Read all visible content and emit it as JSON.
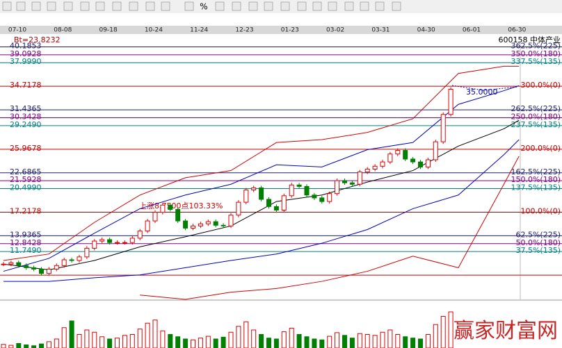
{
  "chart_data": {
    "type": "stock",
    "toolbar_text": "%",
    "title": "600158 中体产业",
    "subtitle": "Bt=23.8232",
    "annotations": [
      "上涨8.7500点103.33%",
      "35.0000"
    ],
    "watermark": "赢家财富网",
    "categories": [
      "07-10",
      "08-08",
      "09-18",
      "10-24",
      "11-24",
      "12-23",
      "01-23",
      "03-02",
      "03-31",
      "04-30",
      "06-01",
      "06-30"
    ],
    "ylim": [
      5.0,
      41.3
    ],
    "levels": [
      {
        "price": {
          "value": 40.1853,
          "label": "40.1853"
        },
        "pct": "362.5%(225)",
        "color": "#20206a"
      },
      {
        "price": {
          "value": 39.0928,
          "label": "39.0928"
        },
        "pct": "350.0%(180)",
        "color": "#800080"
      },
      {
        "price": {
          "value": 37.999,
          "label": "37.9990"
        },
        "pct": "337.5%(135)",
        "color": "#008080"
      },
      {
        "price": {
          "value": 34.7178,
          "label": "34.7178"
        },
        "pct": "300.0%(0)",
        "color": "#c00000"
      },
      {
        "price": {
          "value": 31.4365,
          "label": "31.4365"
        },
        "pct": "262.5%(225)",
        "color": "#20206a"
      },
      {
        "price": {
          "value": 30.3428,
          "label": "30.3428"
        },
        "pct": "250.0%(180)",
        "color": "#800080"
      },
      {
        "price": {
          "value": 29.249,
          "label": "29.2490"
        },
        "pct": "237.5%(135)",
        "color": "#008080"
      },
      {
        "price": {
          "value": 25.9678,
          "label": "25.9678"
        },
        "pct": "200.0%(0)",
        "color": "#c00000"
      },
      {
        "price": {
          "value": 22.6865,
          "label": "22.6865"
        },
        "pct": "162.5%(225)",
        "color": "#20206a"
      },
      {
        "price": {
          "value": 21.5928,
          "label": "21.5928"
        },
        "pct": "150.0%(180)",
        "color": "#800080"
      },
      {
        "price": {
          "value": 20.499,
          "label": "20.4990"
        },
        "pct": "137.5%(135)",
        "color": "#008080"
      },
      {
        "price": {
          "value": 17.2178,
          "label": "17.2178"
        },
        "pct": "100.0%(0)",
        "color": "#c00000"
      },
      {
        "price": {
          "value": 13.9365,
          "label": "13.9365"
        },
        "pct": "62.5%(225)",
        "color": "#20206a"
      },
      {
        "price": {
          "value": 12.8428,
          "label": "12.8428"
        },
        "pct": "50.0%(180)",
        "color": "#800080"
      },
      {
        "price": {
          "value": 11.749,
          "label": "11.7490"
        },
        "pct": "37.5%(135)",
        "color": "#008080"
      },
      {
        "price": 8.4678,
        "color": "#c00000"
      }
    ],
    "candles": {
      "up_color": "#e00000",
      "down_color": "#008000",
      "values": [
        10.0,
        10.2,
        9.8,
        9.5,
        9.3,
        8.7,
        9.3,
        9.8,
        10.6,
        10.5,
        11.0,
        12.2,
        13.2,
        13.4,
        13.0,
        13.0,
        13.0,
        13.6,
        14.6,
        16.0,
        17.2,
        18.2,
        17.6,
        16.0,
        15.0,
        15.3,
        15.6,
        15.9,
        15.4,
        15.3,
        16.8,
        18.6,
        20.3,
        20.6,
        19.0,
        18.0,
        17.5,
        19.5,
        21.0,
        20.8,
        19.6,
        19.2,
        18.7,
        19.8,
        21.6,
        21.3,
        21.1,
        22.8,
        23.2,
        23.6,
        24.2,
        25.3,
        25.8,
        24.6,
        24.2,
        23.5,
        24.5,
        27.0,
        30.8,
        34.3
      ]
    },
    "volume": {
      "ylim": [
        0,
        100
      ],
      "values": [
        8,
        6,
        10,
        7,
        5,
        9,
        14,
        20,
        45,
        60,
        30,
        40,
        35,
        25,
        20,
        22,
        28,
        30,
        42,
        55,
        62,
        38,
        30,
        25,
        20,
        18,
        22,
        26,
        20,
        24,
        35,
        48,
        58,
        40,
        30,
        22,
        20,
        36,
        44,
        30,
        25,
        20,
        18,
        26,
        34,
        28,
        22,
        32,
        30,
        28,
        35,
        40,
        30,
        25,
        22,
        20,
        30,
        52,
        70,
        80
      ]
    },
    "lines": [
      {
        "color": "#0000c0",
        "x": [
          0,
          6,
          12,
          18,
          24,
          30,
          36,
          42,
          48,
          54,
          60,
          66,
          68
        ],
        "values": [
          9.0,
          10.8,
          14.3,
          17.7,
          19.6,
          21.1,
          23.8,
          23.5,
          25.9,
          26.9,
          32.2,
          34.1,
          34.8
        ]
      },
      {
        "color": "#000000",
        "x": [
          0,
          6,
          12,
          18,
          24,
          30,
          36,
          42,
          48,
          54,
          60,
          66,
          68
        ],
        "values": [
          10.0,
          9.2,
          10.5,
          12.4,
          13.8,
          15.3,
          18.7,
          19.6,
          21.4,
          23.0,
          26.4,
          28.8,
          30.0
        ]
      },
      {
        "color": "#0000c0",
        "x": [
          0,
          6,
          12,
          18,
          24,
          30,
          36,
          42,
          48,
          54,
          60,
          66,
          68
        ],
        "values": [
          7.6,
          7.6,
          8.1,
          8.5,
          9.5,
          10.5,
          11.4,
          12.9,
          14.8,
          17.7,
          19.6,
          25.2,
          27.3
        ]
      },
      {
        "color": "#d00000",
        "x": [
          0,
          6,
          12,
          18,
          24,
          30,
          36,
          42,
          48,
          54,
          60,
          66,
          68
        ],
        "values": [
          10.5,
          11.4,
          15.8,
          19.6,
          22.0,
          23.0,
          26.9,
          27.3,
          28.3,
          30.2,
          36.5,
          37.5,
          37.5
        ]
      },
      {
        "color": "#d00000",
        "x": [
          0,
          6,
          12,
          18,
          24,
          30,
          36,
          42,
          48,
          54,
          60,
          66,
          68
        ],
        "values": [
          null,
          null,
          null,
          5.7,
          5.1,
          6.1,
          6.6,
          7.6,
          9.0,
          11.1,
          9.5,
          21.1,
          25.0
        ]
      }
    ]
  }
}
